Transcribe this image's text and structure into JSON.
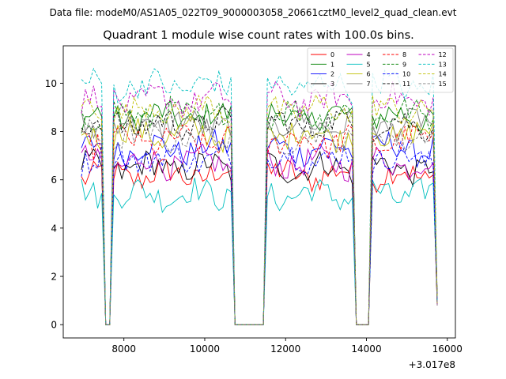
{
  "header": {
    "data_file": "Data file: modeM0/AS1A05_022T09_9000003058_20661cztM0_level2_quad_clean.evt"
  },
  "chart_data": {
    "type": "line",
    "title": "Quadrant 1 module wise count rates with 100.0s bins.",
    "xlabel": "",
    "ylabel": "",
    "x_offset_label": "+3.017e8",
    "xlim": [
      6500,
      16200
    ],
    "ylim": [
      -0.55,
      11.55
    ],
    "x_ticks": [
      8000,
      10000,
      12000,
      14000,
      16000
    ],
    "y_ticks": [
      0,
      2,
      4,
      6,
      8,
      10
    ],
    "legend_position": "top-right",
    "legend_columns": 4,
    "segments": [
      {
        "start": 6950,
        "end": 7450
      },
      {
        "start": 7750,
        "end": 10650
      },
      {
        "start": 11550,
        "end": 13650
      },
      {
        "start": 14150,
        "end": 15650
      }
    ],
    "gaps": [
      [
        7550,
        7750
      ],
      [
        10750,
        11350
      ],
      [
        13750,
        14050
      ]
    ],
    "series": [
      {
        "name": "0",
        "color": "#ff0000",
        "dash": false,
        "mean": 6.2
      },
      {
        "name": "1",
        "color": "#008000",
        "dash": false,
        "mean": 8.6
      },
      {
        "name": "2",
        "color": "#0000ff",
        "dash": false,
        "mean": 7.3
      },
      {
        "name": "3",
        "color": "#000000",
        "dash": false,
        "mean": 6.5
      },
      {
        "name": "4",
        "color": "#bf00bf",
        "dash": false,
        "mean": 6.7
      },
      {
        "name": "5",
        "color": "#00bfbf",
        "dash": false,
        "mean": 5.4
      },
      {
        "name": "6",
        "color": "#bfbf00",
        "dash": false,
        "mean": 7.9
      },
      {
        "name": "7",
        "color": "#808080",
        "dash": false,
        "mean": 8.3
      },
      {
        "name": "8",
        "color": "#ff0000",
        "dash": true,
        "mean": 7.6
      },
      {
        "name": "9",
        "color": "#008000",
        "dash": true,
        "mean": 8.7
      },
      {
        "name": "10",
        "color": "#0000ff",
        "dash": true,
        "mean": 6.9
      },
      {
        "name": "11",
        "color": "#000000",
        "dash": true,
        "mean": 8.3
      },
      {
        "name": "12",
        "color": "#bf00bf",
        "dash": true,
        "mean": 9.3
      },
      {
        "name": "13",
        "color": "#00bfbf",
        "dash": true,
        "mean": 9.9
      },
      {
        "name": "14",
        "color": "#bfbf00",
        "dash": true,
        "mean": 8.9
      },
      {
        "name": "15",
        "color": "#808080",
        "dash": true,
        "mean": 7.8
      }
    ]
  }
}
